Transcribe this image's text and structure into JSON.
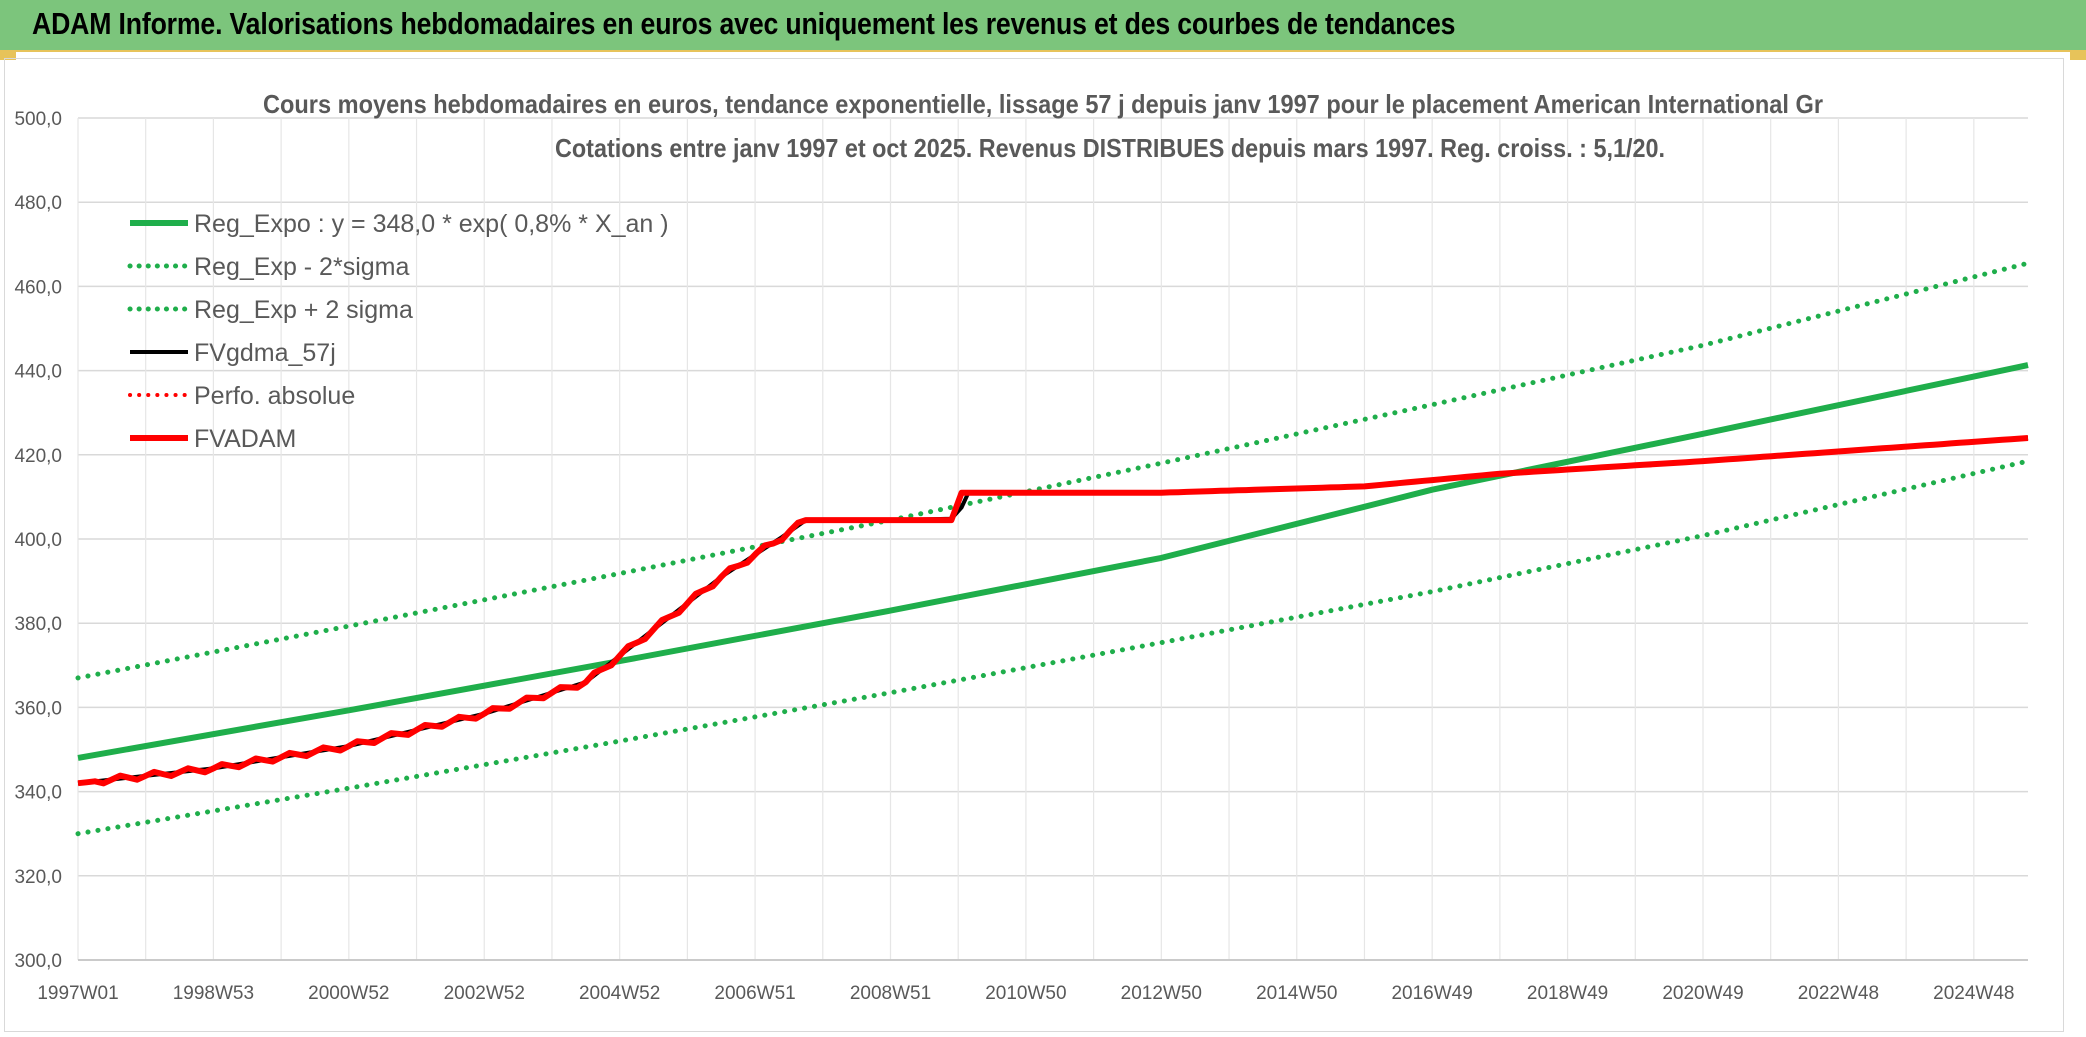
{
  "banner": {
    "title": "ADAM Informe. Valorisations hebdomadaires en euros avec uniquement les revenus et des courbes de tendances"
  },
  "chart_data": {
    "type": "line",
    "title": "Cours moyens hebdomadaires en euros, tendance exponentielle, lissage 57 j depuis janv 1997 pour le placement American International Gr",
    "subtitle": "Cotations entre janv 1997 et oct 2025. Revenus DISTRIBUES depuis mars 1997. Reg. croiss. : 5,1/20.",
    "xlabel": "",
    "ylabel": "",
    "xlim": [
      1997.0,
      2025.8
    ],
    "ylim": [
      300,
      500
    ],
    "y_ticks": [
      300,
      320,
      340,
      360,
      380,
      400,
      420,
      440,
      460,
      480,
      500
    ],
    "y_tick_labels": [
      "300,0",
      "320,0",
      "340,0",
      "360,0",
      "380,0",
      "400,0",
      "420,0",
      "440,0",
      "460,0",
      "480,0",
      "500,0"
    ],
    "x_ticks": [
      1997.0,
      1999.0,
      2001.0,
      2003.0,
      2005.0,
      2007.0,
      2009.0,
      2011.0,
      2013.0,
      2015.0,
      2017.0,
      2019.0,
      2021.0,
      2023.0,
      2025.0
    ],
    "x_tick_labels": [
      "1997W01",
      "1998W53",
      "2000W52",
      "2002W52",
      "2004W52",
      "2006W51",
      "2008W51",
      "2010W50",
      "2012W50",
      "2014W50",
      "2016W49",
      "2018W49",
      "2020W49",
      "2022W48",
      "2024W48"
    ],
    "grid": true,
    "legend_position": "top-left",
    "series": [
      {
        "name": "Reg_Expo : y = 348,0 * exp( 0,8% *  X_an )",
        "color": "#1fae4b",
        "style": "solid",
        "width": 6,
        "x": [
          1997.0,
          2001.0,
          2005.0,
          2009.0,
          2013.0,
          2017.0,
          2021.0,
          2025.8
        ],
        "y": [
          348.0,
          359.3,
          371.0,
          383.0,
          395.5,
          411.7,
          425.0,
          441.3
        ]
      },
      {
        "name": "Reg_Exp - 2*sigma",
        "color": "#1fae4b",
        "style": "dotted",
        "width": 5,
        "x": [
          1997.0,
          2001.0,
          2005.0,
          2009.0,
          2013.0,
          2017.0,
          2021.0,
          2025.8
        ],
        "y": [
          330.0,
          340.8,
          352.0,
          363.5,
          375.4,
          387.5,
          400.8,
          418.5
        ]
      },
      {
        "name": "Reg_Exp + 2 sigma",
        "color": "#1fae4b",
        "style": "dotted",
        "width": 5,
        "x": [
          1997.0,
          2001.0,
          2005.0,
          2009.0,
          2013.0,
          2017.0,
          2021.0,
          2025.8
        ],
        "y": [
          367.0,
          379.3,
          391.8,
          404.5,
          418.0,
          431.9,
          446.0,
          465.5
        ]
      },
      {
        "name": "FVgdma_57j",
        "color": "#000000",
        "style": "solid",
        "width": 4,
        "x": [
          1997.0,
          1999.0,
          2001.0,
          2003.0,
          2004.5,
          2005.5,
          2006.5,
          2007.4,
          2007.75,
          2009.0,
          2009.9,
          2010.05,
          2010.15,
          2013.0,
          2016.0,
          2018.0,
          2021.0,
          2025.8
        ],
        "y": [
          342.0,
          345.5,
          350.8,
          358.5,
          366.0,
          378.5,
          391.0,
          400.5,
          404.5,
          404.5,
          404.8,
          407.5,
          411.0,
          411.0,
          412.5,
          415.5,
          418.5,
          424.0
        ]
      },
      {
        "name": "Perfo. absolue",
        "color": "#ff0000",
        "style": "dotted",
        "width": 4,
        "x": [
          1997.0,
          1999.0,
          2001.0,
          2003.0,
          2004.5,
          2005.5,
          2006.5,
          2007.4,
          2007.75,
          2009.9,
          2010.05,
          2013.0,
          2016.0,
          2018.0,
          2021.0,
          2025.8
        ],
        "y": [
          342.0,
          345.5,
          350.8,
          358.5,
          366.0,
          378.5,
          391.0,
          400.5,
          404.5,
          404.5,
          411.0,
          411.0,
          412.5,
          415.5,
          418.5,
          424.0
        ]
      },
      {
        "name": "FVADAM",
        "color": "#ff0000",
        "style": "solid",
        "width": 6,
        "x": [
          1997.0,
          1999.0,
          2001.0,
          2003.0,
          2004.5,
          2005.5,
          2006.5,
          2007.4,
          2007.75,
          2009.9,
          2010.05,
          2013.0,
          2016.0,
          2018.0,
          2021.0,
          2025.8
        ],
        "y": [
          342.0,
          345.5,
          350.8,
          358.5,
          366.0,
          378.5,
          391.0,
          400.5,
          404.5,
          404.5,
          411.0,
          411.0,
          412.5,
          415.5,
          418.5,
          424.0
        ]
      }
    ]
  }
}
